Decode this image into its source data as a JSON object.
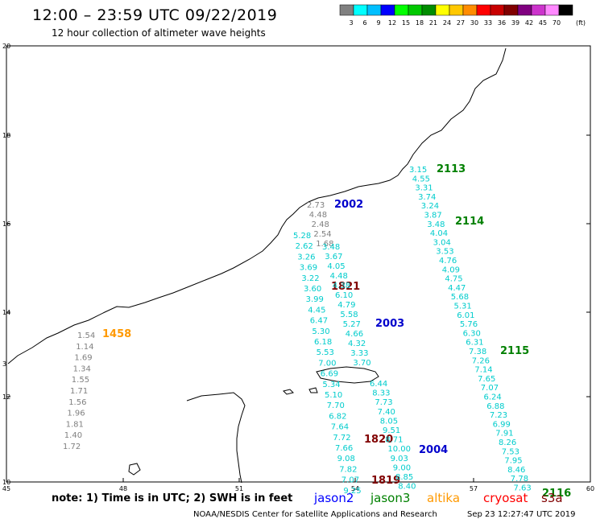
{
  "title": "12:00 – 23:59 UTC 09/22/2019",
  "subtitle": "12 hour collection of altimeter wave heights",
  "colorbar": {
    "unit": "(ft)",
    "bins": [
      {
        "label": "3",
        "color": "#808080"
      },
      {
        "label": "6",
        "color": "#00ffff"
      },
      {
        "label": "9",
        "color": "#00bfff"
      },
      {
        "label": "12",
        "color": "#0000ff"
      },
      {
        "label": "15",
        "color": "#00ff00"
      },
      {
        "label": "18",
        "color": "#00c800"
      },
      {
        "label": "21",
        "color": "#008c00"
      },
      {
        "label": "24",
        "color": "#ffff00"
      },
      {
        "label": "27",
        "color": "#ffc800"
      },
      {
        "label": "30",
        "color": "#ff8c00"
      },
      {
        "label": "33",
        "color": "#ff0000"
      },
      {
        "label": "36",
        "color": "#c80000"
      },
      {
        "label": "39",
        "color": "#800000"
      },
      {
        "label": "42",
        "color": "#800080"
      },
      {
        "label": "45",
        "color": "#cc33cc"
      },
      {
        "label": "70",
        "color": "#ff88ff"
      },
      {
        "label": "",
        "color": "#000000"
      }
    ]
  },
  "axes": {
    "lat_ticks": [
      "20",
      "18",
      "16",
      "14",
      "12",
      "10"
    ],
    "lon_ticks": [
      "45",
      "48",
      "51",
      "54",
      "57",
      "60"
    ],
    "left_edge_marker": "3"
  },
  "passes": [
    {
      "id": "2002",
      "color": "#0000cc"
    },
    {
      "id": "2113",
      "color": "#008000"
    },
    {
      "id": "2114",
      "color": "#008000"
    },
    {
      "id": "1821",
      "color": "#800000"
    },
    {
      "id": "2003",
      "color": "#0000cc"
    },
    {
      "id": "2115",
      "color": "#008000"
    },
    {
      "id": "1458",
      "color": "#ff9900"
    },
    {
      "id": "1820",
      "color": "#800000"
    },
    {
      "id": "2004",
      "color": "#0000cc"
    },
    {
      "id": "2116",
      "color": "#008000"
    },
    {
      "id": "1819",
      "color": "#800000"
    }
  ],
  "wave_heights": {
    "track_1458": [
      "1.54",
      "1.14",
      "1.69",
      "1.34",
      "1.55",
      "1.71",
      "1.56",
      "1.96",
      "1.81",
      "1.40",
      "1.72"
    ],
    "track_2002_a": [
      "2.73",
      "4.48",
      "2.48",
      "2.54",
      "1.68"
    ],
    "track_2002_b": [
      "5.28",
      "2.62",
      "3.26",
      "3.69",
      "3.22",
      "3.60",
      "3.99",
      "4.45",
      "6.47",
      "5.30",
      "6.18",
      "5.53",
      "7.00",
      "6.69",
      "5.34",
      "5.10",
      "7.70",
      "6.82",
      "7.64",
      "7.72",
      "7.66",
      "9.08",
      "7.82",
      "7.07",
      "9.25"
    ],
    "track_1821": [
      "3.48",
      "3.67",
      "4.05",
      "4.48",
      "4.38",
      "6.10",
      "4.79",
      "5.58",
      "5.27",
      "4.66",
      "4.32",
      "3.33",
      "3.70"
    ],
    "track_2004": [
      "6.44",
      "8.33",
      "7.73",
      "7.40",
      "8.05",
      "9.51",
      "8.71",
      "10.00",
      "9.03",
      "9.00",
      "8.85",
      "8.40"
    ],
    "track_2113": [
      "3.15",
      "4.55",
      "3.31",
      "3.74",
      "3.24",
      "3.87",
      "3.48",
      "4.04",
      "3.04",
      "3.53",
      "4.76",
      "4.09",
      "4.75",
      "4.47",
      "5.68",
      "5.31",
      "6.01",
      "5.76",
      "6.30",
      "6.31",
      "7.38",
      "7.26",
      "7.14",
      "7.65",
      "7.07",
      "6.24",
      "6.88",
      "7.23",
      "6.99",
      "7.91",
      "8.26",
      "7.53",
      "7.95",
      "8.46",
      "7.78",
      "7.63"
    ]
  },
  "note": "note:  1) Time is in UTC;  2) SWH is in feet",
  "legend": [
    {
      "label": "jason2",
      "color": "#0000ff"
    },
    {
      "label": "jason3",
      "color": "#008000"
    },
    {
      "label": "altika",
      "color": "#ff9900"
    },
    {
      "label": "cryosat",
      "color": "#ff0000"
    },
    {
      "label": "s3a",
      "color": "#800000"
    }
  ],
  "footer_left": "NOAA/NESDIS Center for Satellite Applications and Research",
  "footer_right": "Sep 23 12:27:47 UTC 2019"
}
